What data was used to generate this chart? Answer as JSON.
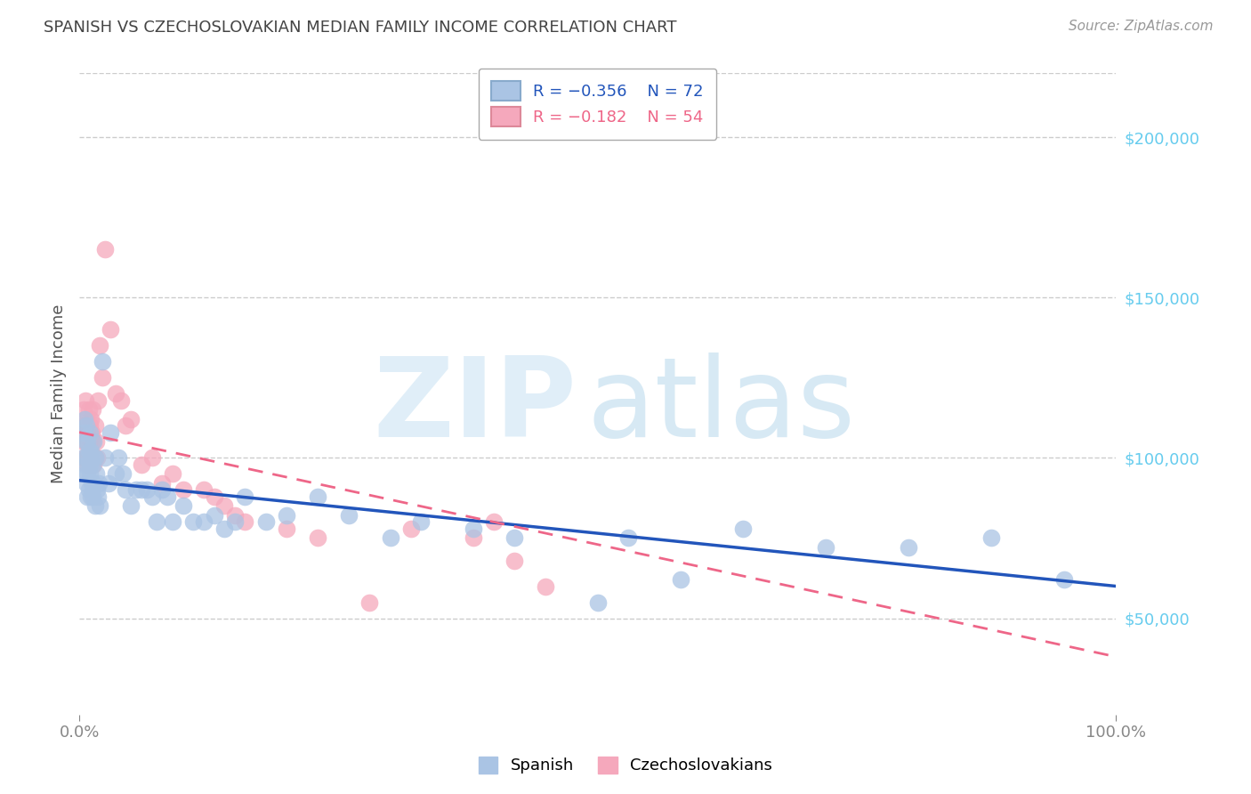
{
  "title": "SPANISH VS CZECHOSLOVAKIAN MEDIAN FAMILY INCOME CORRELATION CHART",
  "source": "Source: ZipAtlas.com",
  "ylabel": "Median Family Income",
  "watermark_zip": "ZIP",
  "watermark_atlas": "atlas",
  "blue_label": "Spanish",
  "pink_label": "Czechoslovakians",
  "blue_R": "R = −0.356",
  "blue_N": "N = 72",
  "pink_R": "R = −0.182",
  "pink_N": "N = 54",
  "blue_color": "#aac4e4",
  "pink_color": "#f5a8bc",
  "blue_line_color": "#2255bb",
  "pink_line_color": "#ee6688",
  "grid_color": "#cccccc",
  "background_color": "#ffffff",
  "title_color": "#444444",
  "source_color": "#999999",
  "right_ytick_color": "#66ccee",
  "ylim": [
    20000,
    220000
  ],
  "xlim": [
    0,
    1.0
  ],
  "blue_scatter_x": [
    0.003,
    0.004,
    0.005,
    0.005,
    0.006,
    0.006,
    0.007,
    0.007,
    0.007,
    0.008,
    0.008,
    0.008,
    0.009,
    0.009,
    0.01,
    0.01,
    0.01,
    0.011,
    0.011,
    0.012,
    0.012,
    0.013,
    0.013,
    0.014,
    0.014,
    0.015,
    0.015,
    0.016,
    0.017,
    0.018,
    0.019,
    0.02,
    0.022,
    0.025,
    0.028,
    0.03,
    0.035,
    0.038,
    0.042,
    0.045,
    0.05,
    0.055,
    0.06,
    0.065,
    0.07,
    0.075,
    0.08,
    0.085,
    0.09,
    0.1,
    0.11,
    0.12,
    0.13,
    0.14,
    0.15,
    0.16,
    0.18,
    0.2,
    0.23,
    0.26,
    0.3,
    0.33,
    0.38,
    0.42,
    0.5,
    0.53,
    0.58,
    0.64,
    0.72,
    0.8,
    0.88,
    0.95
  ],
  "blue_scatter_y": [
    100000,
    108000,
    95000,
    112000,
    105000,
    98000,
    92000,
    100000,
    110000,
    88000,
    105000,
    95000,
    102000,
    90000,
    98000,
    95000,
    108000,
    88000,
    102000,
    100000,
    92000,
    98000,
    88000,
    105000,
    92000,
    100000,
    85000,
    95000,
    90000,
    88000,
    92000,
    85000,
    130000,
    100000,
    92000,
    108000,
    95000,
    100000,
    95000,
    90000,
    85000,
    90000,
    90000,
    90000,
    88000,
    80000,
    90000,
    88000,
    80000,
    85000,
    80000,
    80000,
    82000,
    78000,
    80000,
    88000,
    80000,
    82000,
    88000,
    82000,
    75000,
    80000,
    78000,
    75000,
    55000,
    75000,
    62000,
    78000,
    72000,
    72000,
    75000,
    62000
  ],
  "pink_scatter_x": [
    0.003,
    0.004,
    0.004,
    0.005,
    0.005,
    0.006,
    0.006,
    0.006,
    0.007,
    0.007,
    0.008,
    0.008,
    0.009,
    0.009,
    0.01,
    0.01,
    0.011,
    0.011,
    0.012,
    0.012,
    0.013,
    0.013,
    0.014,
    0.015,
    0.015,
    0.016,
    0.017,
    0.018,
    0.02,
    0.022,
    0.025,
    0.03,
    0.035,
    0.04,
    0.045,
    0.05,
    0.06,
    0.07,
    0.08,
    0.09,
    0.1,
    0.12,
    0.13,
    0.14,
    0.15,
    0.16,
    0.2,
    0.23,
    0.28,
    0.32,
    0.38,
    0.4,
    0.42,
    0.45
  ],
  "pink_scatter_y": [
    110000,
    105000,
    115000,
    108000,
    100000,
    112000,
    118000,
    105000,
    110000,
    100000,
    108000,
    98000,
    105000,
    115000,
    110000,
    100000,
    105000,
    112000,
    100000,
    108000,
    115000,
    105000,
    98000,
    100000,
    110000,
    105000,
    100000,
    118000,
    135000,
    125000,
    165000,
    140000,
    120000,
    118000,
    110000,
    112000,
    98000,
    100000,
    92000,
    95000,
    90000,
    90000,
    88000,
    85000,
    82000,
    80000,
    78000,
    75000,
    55000,
    78000,
    75000,
    80000,
    68000,
    60000
  ],
  "blue_trend_x": [
    0.0,
    1.0
  ],
  "blue_trend_y": [
    93000,
    60000
  ],
  "pink_trend_x": [
    0.0,
    1.0
  ],
  "pink_trend_y": [
    108000,
    38000
  ],
  "yticks_right": [
    50000,
    100000,
    150000,
    200000
  ],
  "ytick_labels_right": [
    "$50,000",
    "$100,000",
    "$150,000",
    "$200,000"
  ],
  "xticks": [
    0.0,
    1.0
  ],
  "xtick_labels": [
    "0.0%",
    "100.0%"
  ]
}
